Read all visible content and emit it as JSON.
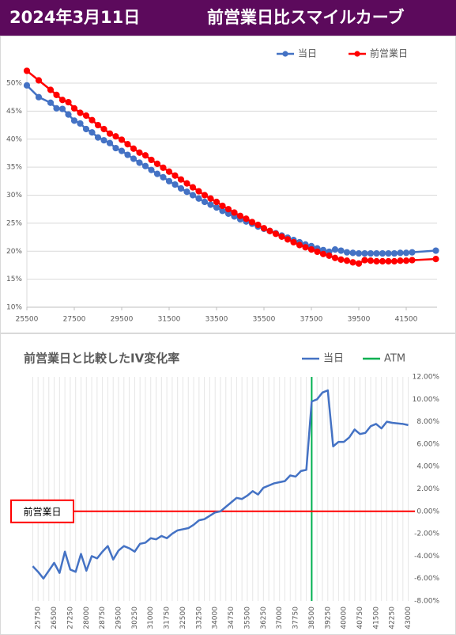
{
  "header": {
    "date": "2024年3月11日",
    "title": "前営業日比スマイルカーブ"
  },
  "chart_data": [
    {
      "type": "line",
      "legend": "top-right",
      "grid": "y",
      "markers": true,
      "x": [
        25500,
        26000,
        26500,
        26750,
        27000,
        27250,
        27500,
        27750,
        28000,
        28250,
        28500,
        28750,
        29000,
        29250,
        29500,
        29750,
        30000,
        30250,
        30500,
        30750,
        31000,
        31250,
        31500,
        31750,
        32000,
        32250,
        32500,
        32750,
        33000,
        33250,
        33500,
        33750,
        34000,
        34250,
        34500,
        34750,
        35000,
        35250,
        35500,
        35750,
        36000,
        36250,
        36500,
        36750,
        37000,
        37250,
        37500,
        37750,
        38000,
        38250,
        38500,
        38750,
        39000,
        39250,
        39500,
        39750,
        40000,
        40250,
        40500,
        40750,
        41000,
        41250,
        41500,
        41750,
        42750
      ],
      "series": [
        {
          "name": "当日",
          "color": "#4472c4",
          "values": [
            49.6,
            47.5,
            46.5,
            45.5,
            45.4,
            44.4,
            43.3,
            42.8,
            41.8,
            41.2,
            40.3,
            39.8,
            39.3,
            38.4,
            37.9,
            37.2,
            36.5,
            35.8,
            35.2,
            34.5,
            33.8,
            33.2,
            32.5,
            31.9,
            31.2,
            30.6,
            30.0,
            29.4,
            28.8,
            28.3,
            27.8,
            27.2,
            26.7,
            26.2,
            25.7,
            25.3,
            24.9,
            24.4,
            24.0,
            23.6,
            23.2,
            22.8,
            22.4,
            22.0,
            21.6,
            21.2,
            20.9,
            20.5,
            20.2,
            19.9,
            20.3,
            20.1,
            19.8,
            19.7,
            19.6,
            19.6,
            19.6,
            19.6,
            19.6,
            19.6,
            19.6,
            19.7,
            19.7,
            19.8,
            20.1
          ]
        },
        {
          "name": "前営業日",
          "color": "#ff0000",
          "values": [
            52.2,
            50.5,
            48.8,
            47.9,
            47.0,
            46.6,
            45.5,
            44.7,
            44.2,
            43.4,
            42.5,
            41.8,
            41.0,
            40.5,
            39.9,
            39.1,
            38.3,
            37.6,
            37.1,
            36.3,
            35.6,
            34.9,
            34.2,
            33.5,
            32.8,
            32.1,
            31.4,
            30.7,
            30.0,
            29.4,
            28.8,
            28.1,
            27.5,
            26.9,
            26.3,
            25.8,
            25.2,
            24.7,
            24.1,
            23.6,
            23.1,
            22.6,
            22.1,
            21.6,
            21.1,
            20.7,
            20.3,
            19.9,
            19.5,
            19.2,
            18.8,
            18.5,
            18.3,
            18.0,
            17.8,
            18.4,
            18.3,
            18.2,
            18.2,
            18.2,
            18.2,
            18.3,
            18.3,
            18.4,
            18.6
          ]
        }
      ],
      "xlim": [
        25500,
        42800
      ],
      "xticks": [
        25500,
        27500,
        29500,
        31500,
        33500,
        35500,
        37500,
        39500,
        41500
      ],
      "ylim": [
        10,
        50
      ],
      "yticks": [
        {
          "value": 10,
          "label": "10%"
        },
        {
          "value": 15,
          "label": "15%"
        },
        {
          "value": 20,
          "label": "20%"
        },
        {
          "value": 25,
          "label": "25%"
        },
        {
          "value": 30,
          "label": "30%"
        },
        {
          "value": 35,
          "label": "35%"
        },
        {
          "value": 40,
          "label": "40%"
        },
        {
          "value": 45,
          "label": "45%"
        },
        {
          "value": 50,
          "label": "50%"
        }
      ]
    },
    {
      "type": "line",
      "title": "前営業日と比較したIV変化率",
      "legend": "top-right",
      "grid": "x",
      "y_axis_side": "right",
      "categories": [
        null,
        25750,
        null,
        null,
        26500,
        null,
        null,
        27250,
        null,
        null,
        28000,
        null,
        null,
        28750,
        null,
        null,
        29500,
        null,
        null,
        30250,
        null,
        null,
        31000,
        null,
        null,
        31750,
        null,
        null,
        32500,
        null,
        null,
        33250,
        null,
        null,
        34000,
        null,
        null,
        34750,
        null,
        null,
        35500,
        null,
        null,
        36250,
        null,
        null,
        37000,
        null,
        null,
        37750,
        null,
        null,
        38500,
        null,
        null,
        39250,
        null,
        null,
        40000,
        null,
        null,
        40750,
        null,
        null,
        41500,
        null,
        null,
        42250,
        null,
        null,
        43000
      ],
      "series": [
        {
          "name": "当日",
          "color": "#4472c4",
          "values": [
            -4.9,
            -5.4,
            -6.0,
            -5.3,
            -4.6,
            -5.5,
            -3.6,
            -5.2,
            -5.4,
            -3.8,
            -5.3,
            -4.0,
            -4.2,
            -3.6,
            -3.1,
            -4.3,
            -3.5,
            -3.1,
            -3.3,
            -3.6,
            -2.9,
            -2.8,
            -2.4,
            -2.5,
            -2.2,
            -2.4,
            -2.0,
            -1.7,
            -1.6,
            -1.5,
            -1.2,
            -0.8,
            -0.7,
            -0.4,
            -0.1,
            0.0,
            0.4,
            0.8,
            1.2,
            1.1,
            1.4,
            1.8,
            1.5,
            2.1,
            2.3,
            2.5,
            2.6,
            2.7,
            3.2,
            3.1,
            3.6,
            3.7,
            9.8,
            10.0,
            10.6,
            10.8,
            5.8,
            6.2,
            6.2,
            6.6,
            7.3,
            6.9,
            7.0,
            7.6,
            7.8,
            7.4,
            8.0,
            7.9,
            7.85,
            7.8,
            7.7
          ]
        }
      ],
      "reference_lines": [
        {
          "name": "ATM",
          "color": "#00b050",
          "x": 38500
        },
        {
          "name": "前営業日",
          "color": "#ff0000",
          "y": 0
        }
      ],
      "ylim": [
        -8,
        12
      ],
      "yticks": [
        {
          "value": 12,
          "label": "12.00%"
        },
        {
          "value": 10,
          "label": "10.00%"
        },
        {
          "value": 8,
          "label": "8.00%"
        },
        {
          "value": 6,
          "label": "6.00%"
        },
        {
          "value": 4,
          "label": "4.00%"
        },
        {
          "value": 2,
          "label": "2.00%"
        },
        {
          "value": 0,
          "label": "0.00%"
        },
        {
          "value": -2,
          "label": "-2.00%"
        },
        {
          "value": -4,
          "label": "-4.00%"
        },
        {
          "value": -6,
          "label": "-6.00%"
        },
        {
          "value": -8,
          "label": "-8.00%"
        }
      ]
    }
  ]
}
